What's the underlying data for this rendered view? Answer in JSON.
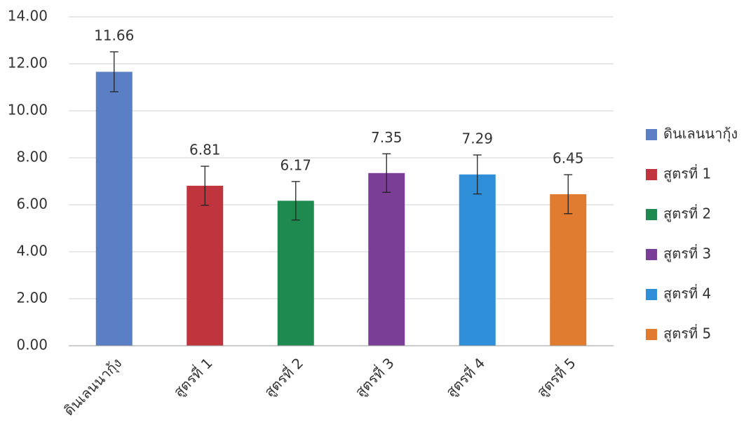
{
  "chart_data": {
    "type": "bar",
    "categories": [
      "ดินเลนนากุ้ง",
      "สูตรที่ 1",
      "สูตรที่ 2",
      "สูตรที่ 3",
      "สูตรที่ 4",
      "สูตรที่ 5"
    ],
    "values": [
      11.66,
      6.81,
      6.17,
      7.35,
      7.29,
      6.45
    ],
    "errors": [
      0.85,
      0.83,
      0.82,
      0.82,
      0.83,
      0.83
    ],
    "colors": [
      "#5b7fc4",
      "#c0353d",
      "#1f8a50",
      "#7a3e96",
      "#2e8fd8",
      "#e07b30"
    ],
    "ylim": [
      0,
      14
    ],
    "yticks": [
      {
        "value": 0,
        "label": "0.00"
      },
      {
        "value": 2,
        "label": "2.00"
      },
      {
        "value": 4,
        "label": "4.00"
      },
      {
        "value": 6,
        "label": "6.00"
      },
      {
        "value": 8,
        "label": "8.00"
      },
      {
        "value": 10,
        "label": "10.00"
      },
      {
        "value": 12,
        "label": "12.00"
      },
      {
        "value": 14,
        "label": "14.00"
      }
    ],
    "grid": true,
    "legend": "right"
  }
}
